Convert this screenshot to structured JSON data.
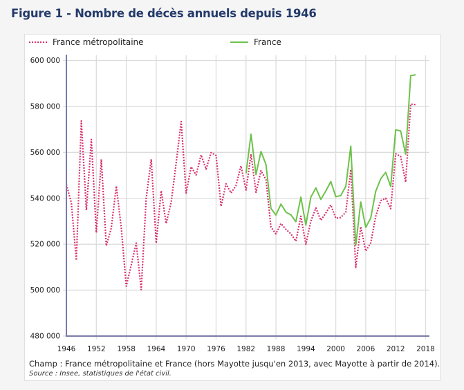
{
  "title": "Figure 1 - Nombre de décès annuels depuis 1946",
  "caption": "Champ : France métropolitaine et France (hors Mayotte jusqu'en 2013, avec Mayotte à partir de 2014).",
  "source": "Source : Insee, statistiques de l'état civil.",
  "colors": {
    "metropole": "#d9316e",
    "france": "#6cc24a",
    "axis": "#7a7aa8",
    "grid": "#dcdcdc",
    "title": "#243a6b"
  },
  "chart_data": {
    "type": "line",
    "title": "Nombre de décès annuels depuis 1946",
    "xlabel": "",
    "ylabel": "",
    "xlim": [
      1946,
      2018
    ],
    "ylim": [
      480000,
      600000
    ],
    "x_ticks": [
      1946,
      1952,
      1958,
      1964,
      1970,
      1976,
      1982,
      1988,
      1994,
      2000,
      2006,
      2012,
      2018
    ],
    "y_ticks": [
      480000,
      500000,
      520000,
      540000,
      560000,
      580000,
      600000
    ],
    "y_tick_labels": [
      "480 000",
      "500 000",
      "520 000",
      "540 000",
      "560 000",
      "580 000",
      "600 000"
    ],
    "grid": true,
    "legend_position": "top",
    "series": [
      {
        "name": "France métropolitaine",
        "style": "dotted",
        "color": "#d9316e",
        "x": [
          1946,
          1947,
          1948,
          1949,
          1950,
          1951,
          1952,
          1953,
          1954,
          1955,
          1956,
          1957,
          1958,
          1959,
          1960,
          1961,
          1962,
          1963,
          1964,
          1965,
          1966,
          1967,
          1968,
          1969,
          1970,
          1971,
          1972,
          1973,
          1974,
          1975,
          1976,
          1977,
          1978,
          1979,
          1980,
          1981,
          1982,
          1983,
          1984,
          1985,
          1986,
          1987,
          1988,
          1989,
          1990,
          1991,
          1992,
          1993,
          1994,
          1995,
          1996,
          1997,
          1998,
          1999,
          2000,
          2001,
          2002,
          2003,
          2004,
          2005,
          2006,
          2007,
          2008,
          2009,
          2010,
          2011,
          2012,
          2013,
          2014,
          2015,
          2016
        ],
        "values": [
          546000,
          538000,
          513000,
          573700,
          534800,
          565600,
          525000,
          557000,
          519300,
          527000,
          545300,
          527000,
          501700,
          511000,
          520500,
          500200,
          540000,
          557000,
          520500,
          543300,
          529000,
          538200,
          555200,
          573400,
          542300,
          553700,
          550200,
          558900,
          552700,
          559900,
          558700,
          536500,
          546300,
          542300,
          545600,
          554100,
          543600,
          559200,
          542600,
          552000,
          548200,
          527500,
          524500,
          529000,
          526500,
          524500,
          521300,
          532200,
          520000,
          530000,
          535800,
          530400,
          533600,
          537100,
          531300,
          531600,
          534000,
          552500,
          509900,
          527600,
          517000,
          520500,
          532100,
          539000,
          540000,
          535500,
          559400,
          558200,
          547100,
          581000,
          580800
        ]
      },
      {
        "name": "France",
        "style": "solid",
        "color": "#6cc24a",
        "x": [
          1982,
          1983,
          1984,
          1985,
          1986,
          1987,
          1988,
          1989,
          1990,
          1991,
          1992,
          1993,
          1994,
          1995,
          1996,
          1997,
          1998,
          1999,
          2000,
          2001,
          2002,
          2003,
          2004,
          2005,
          2006,
          2007,
          2008,
          2009,
          2010,
          2011,
          2012,
          2013,
          2014,
          2015,
          2016
        ],
        "values": [
          550900,
          567900,
          550300,
          560400,
          554700,
          535600,
          532700,
          537500,
          534000,
          532800,
          529800,
          540500,
          528300,
          540500,
          544500,
          539500,
          543200,
          547300,
          540700,
          541200,
          545200,
          562700,
          519500,
          538400,
          527300,
          531400,
          543000,
          548500,
          551300,
          545100,
          569800,
          569300,
          559200,
          593400,
          593800
        ]
      }
    ]
  }
}
